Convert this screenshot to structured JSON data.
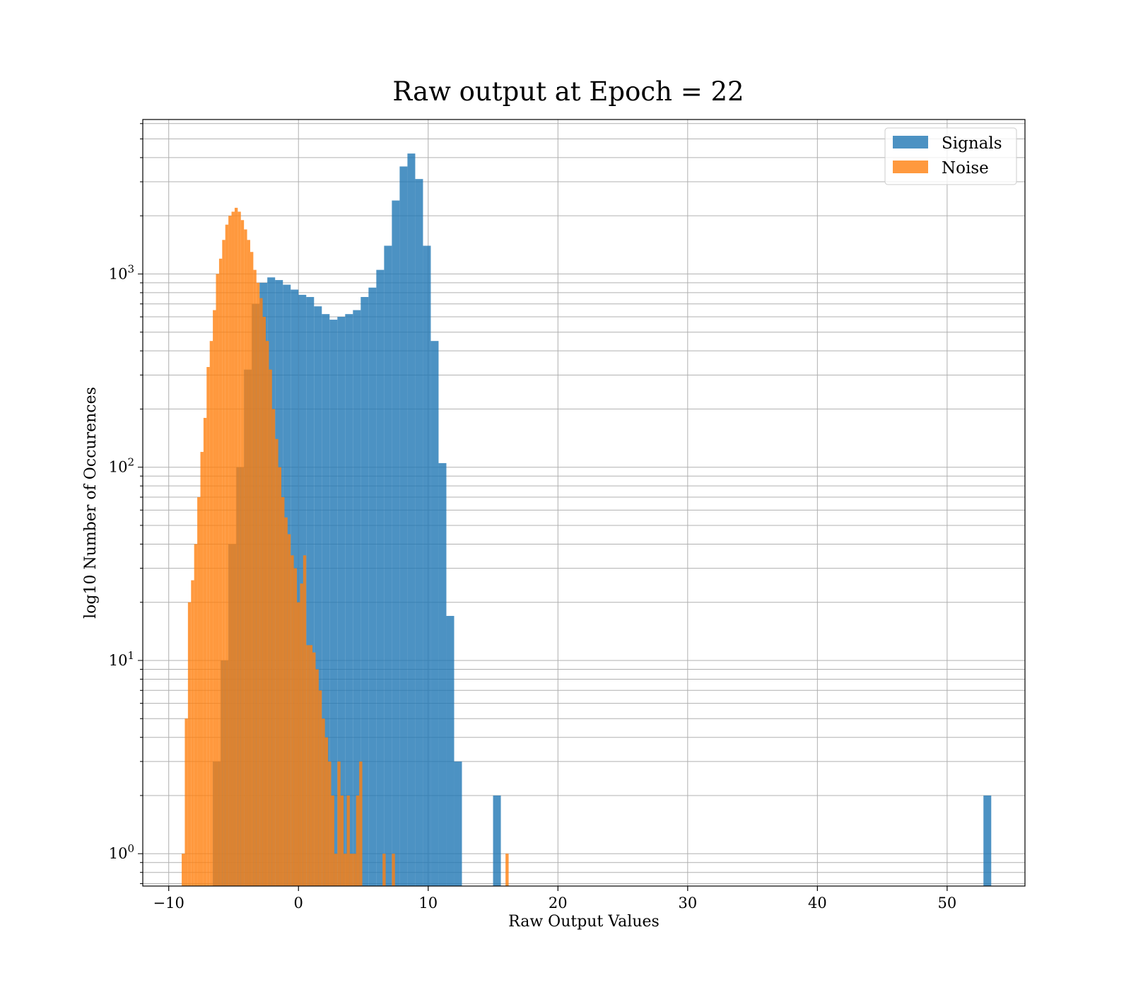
{
  "chart_data": {
    "type": "bar",
    "title": "Raw output at Epoch = 22",
    "xlabel": "Raw Output Values",
    "ylabel": "log10 Number of Occurences",
    "xlim": [
      -12,
      56
    ],
    "ylim": [
      0.68,
      6300
    ],
    "yscale": "log",
    "grid": true,
    "legend_position": "top-right",
    "x_ticks": [
      -10,
      0,
      10,
      20,
      30,
      40,
      50
    ],
    "x_tick_labels": [
      "−10",
      "0",
      "10",
      "20",
      "30",
      "40",
      "50"
    ],
    "y_ticks": [
      {
        "value": 1,
        "base": "10",
        "exp": "0"
      },
      {
        "value": 10,
        "base": "10",
        "exp": "1"
      },
      {
        "value": 100,
        "base": "10",
        "exp": "2"
      },
      {
        "value": 1000,
        "base": "10",
        "exp": "3"
      }
    ],
    "series": [
      {
        "name": "Signals",
        "color": "#1f77b4",
        "opacity": 0.8,
        "bin_width": 0.6,
        "bins": [
          [
            -6.6,
            3
          ],
          [
            -6.0,
            10
          ],
          [
            -5.4,
            40
          ],
          [
            -4.8,
            100
          ],
          [
            -4.2,
            320
          ],
          [
            -3.6,
            700
          ],
          [
            -3.0,
            900
          ],
          [
            -2.4,
            960
          ],
          [
            -1.8,
            930
          ],
          [
            -1.2,
            880
          ],
          [
            -0.6,
            830
          ],
          [
            0.0,
            780
          ],
          [
            0.6,
            760
          ],
          [
            1.2,
            680
          ],
          [
            1.8,
            620
          ],
          [
            2.4,
            580
          ],
          [
            3.0,
            600
          ],
          [
            3.6,
            620
          ],
          [
            4.2,
            650
          ],
          [
            4.8,
            760
          ],
          [
            5.4,
            850
          ],
          [
            6.0,
            1050
          ],
          [
            6.6,
            1400
          ],
          [
            7.2,
            2400
          ],
          [
            7.8,
            3600
          ],
          [
            8.4,
            4200
          ],
          [
            9.0,
            3100
          ],
          [
            9.6,
            1400
          ],
          [
            10.2,
            450
          ],
          [
            10.8,
            105
          ],
          [
            11.4,
            17
          ],
          [
            12.0,
            3
          ],
          [
            15.0,
            2
          ],
          [
            52.8,
            2
          ]
        ]
      },
      {
        "name": "Noise",
        "color": "#ff7f0e",
        "opacity": 0.8,
        "bin_width": 0.24,
        "bins": [
          [
            -9.0,
            1
          ],
          [
            -8.76,
            5
          ],
          [
            -8.52,
            20
          ],
          [
            -8.28,
            26
          ],
          [
            -8.04,
            40
          ],
          [
            -7.8,
            70
          ],
          [
            -7.56,
            120
          ],
          [
            -7.32,
            180
          ],
          [
            -7.08,
            330
          ],
          [
            -6.84,
            450
          ],
          [
            -6.6,
            650
          ],
          [
            -6.36,
            1000
          ],
          [
            -6.12,
            1200
          ],
          [
            -5.88,
            1500
          ],
          [
            -5.64,
            1800
          ],
          [
            -5.4,
            2000
          ],
          [
            -5.16,
            2100
          ],
          [
            -4.92,
            2200
          ],
          [
            -4.68,
            2100
          ],
          [
            -4.44,
            1900
          ],
          [
            -4.2,
            1700
          ],
          [
            -3.96,
            1500
          ],
          [
            -3.72,
            1300
          ],
          [
            -3.48,
            1050
          ],
          [
            -3.24,
            900
          ],
          [
            -3.0,
            750
          ],
          [
            -2.76,
            600
          ],
          [
            -2.52,
            450
          ],
          [
            -2.28,
            320
          ],
          [
            -2.04,
            200
          ],
          [
            -1.8,
            140
          ],
          [
            -1.56,
            100
          ],
          [
            -1.32,
            70
          ],
          [
            -1.08,
            55
          ],
          [
            -0.84,
            45
          ],
          [
            -0.6,
            35
          ],
          [
            -0.36,
            30
          ],
          [
            -0.12,
            20
          ],
          [
            0.12,
            25
          ],
          [
            0.36,
            35
          ],
          [
            0.6,
            12
          ],
          [
            0.84,
            12
          ],
          [
            1.08,
            11
          ],
          [
            1.32,
            9
          ],
          [
            1.56,
            7
          ],
          [
            1.8,
            5
          ],
          [
            2.04,
            4
          ],
          [
            2.28,
            3
          ],
          [
            2.52,
            2
          ],
          [
            2.76,
            1
          ],
          [
            3.0,
            3
          ],
          [
            3.24,
            2
          ],
          [
            3.48,
            1
          ],
          [
            3.72,
            2
          ],
          [
            3.96,
            1
          ],
          [
            4.2,
            1
          ],
          [
            4.44,
            2
          ],
          [
            4.68,
            3
          ],
          [
            6.48,
            1
          ],
          [
            7.2,
            1
          ],
          [
            15.96,
            1
          ]
        ]
      }
    ]
  }
}
